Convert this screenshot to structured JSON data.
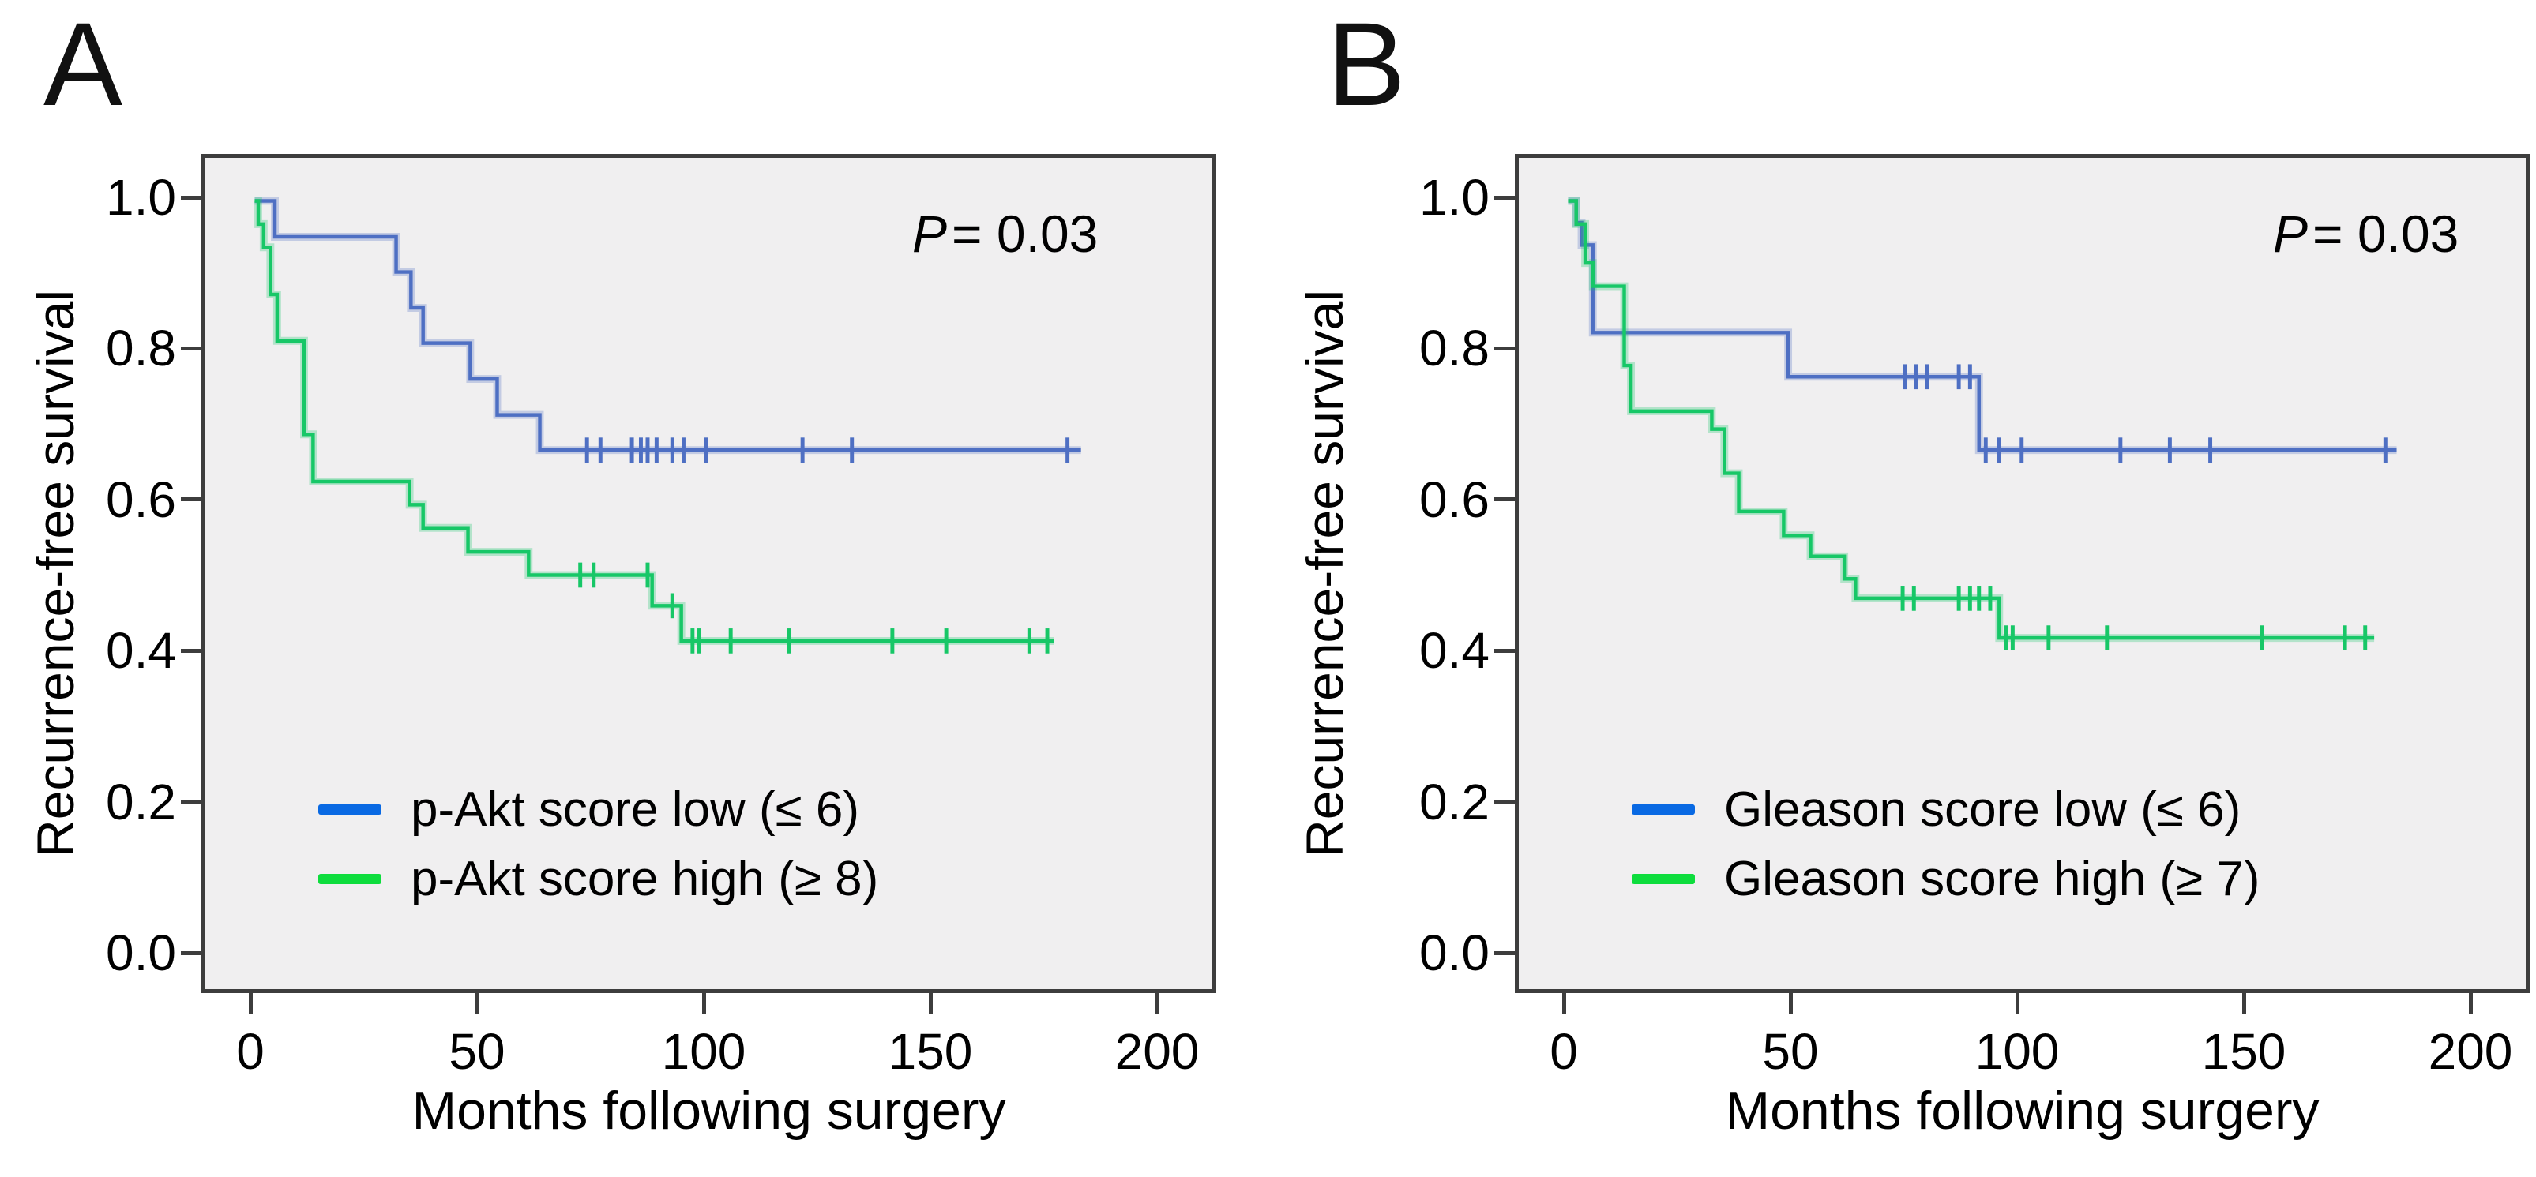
{
  "figure": {
    "background": "#ffffff",
    "description_visible_text_only": true
  },
  "colors": {
    "curve": {
      "blue": "#4e6fc3",
      "green": "#17c767"
    },
    "legend": {
      "blue": "#0969e3",
      "green": "#0edd3d"
    },
    "frame_border": "#3d3d3d",
    "plot_background": "#f0eff0",
    "tick": "#3d3d3d",
    "text": "#000000"
  },
  "chart_data": [
    {
      "panel_letter": "A",
      "type": "line",
      "chart_kind": "kaplan-meier-step-survival",
      "p_value_var": "P",
      "p_value_rest": "= 0.03",
      "xlabel": "Months following surgery",
      "ylabel": "Recurrence-free survival",
      "x_ticks": [
        "0",
        "50",
        "100",
        "150",
        "200"
      ],
      "y_ticks": [
        "1.0",
        "0.8",
        "0.6",
        "0.4",
        "0.2",
        "0.0"
      ],
      "xlim": [
        -11,
        214
      ],
      "ylim": [
        -0.053,
        1.057
      ],
      "grid": false,
      "legend_position": "inside-lower-left",
      "series": [
        {
          "name": "p-Akt score low (≤ 6)",
          "color_key": "blue",
          "steps": [
            [
              0,
              1.0
            ],
            [
              4.5,
              0.952
            ],
            [
              31.5,
              0.905
            ],
            [
              34.8,
              0.857
            ],
            [
              37.5,
              0.81
            ],
            [
              48,
              0.762
            ],
            [
              54,
              0.714
            ],
            [
              63.5,
              0.667
            ]
          ],
          "end_time": 184,
          "censor_times": [
            [
              74,
              0.667
            ],
            [
              77,
              0.667
            ],
            [
              84,
              0.667
            ],
            [
              86,
              0.667
            ],
            [
              87.5,
              0.667
            ],
            [
              89.5,
              0.667
            ],
            [
              93,
              0.667
            ],
            [
              95.5,
              0.667
            ],
            [
              100.5,
              0.667
            ],
            [
              122,
              0.667
            ],
            [
              133,
              0.667
            ],
            [
              181,
              0.667
            ]
          ]
        },
        {
          "name": "p-Akt score high (≥ 8)",
          "color_key": "green",
          "steps": [
            [
              0,
              1.0
            ],
            [
              0.8,
              0.969
            ],
            [
              2,
              0.938
            ],
            [
              3.5,
              0.875
            ],
            [
              5,
              0.813
            ],
            [
              11,
              0.688
            ],
            [
              13,
              0.625
            ],
            [
              34.5,
              0.594
            ],
            [
              37.5,
              0.563
            ],
            [
              47.5,
              0.531
            ],
            [
              61,
              0.5
            ],
            [
              88.5,
              0.459
            ],
            [
              95,
              0.412
            ]
          ],
          "end_time": 178,
          "censor_times": [
            [
              72.5,
              0.5
            ],
            [
              75.5,
              0.5
            ],
            [
              87.5,
              0.5
            ],
            [
              93,
              0.459
            ],
            [
              97.5,
              0.412
            ],
            [
              99,
              0.412
            ],
            [
              106,
              0.412
            ],
            [
              119,
              0.412
            ],
            [
              142,
              0.412
            ],
            [
              154,
              0.412
            ],
            [
              172.5,
              0.412
            ],
            [
              176.5,
              0.412
            ]
          ]
        }
      ]
    },
    {
      "panel_letter": "B",
      "type": "line",
      "chart_kind": "kaplan-meier-step-survival",
      "p_value_var": "P",
      "p_value_rest": "= 0.03",
      "xlabel": "Months following surgery",
      "ylabel": "Recurrence-free survival",
      "x_ticks": [
        "0",
        "50",
        "100",
        "150",
        "200"
      ],
      "y_ticks": [
        "1.0",
        "0.8",
        "0.6",
        "0.4",
        "0.2",
        "0.0"
      ],
      "xlim": [
        -11,
        214
      ],
      "ylim": [
        -0.053,
        1.057
      ],
      "grid": false,
      "legend_position": "inside-lower-left",
      "series": [
        {
          "name": "Gleason score low (≤ 6)",
          "color_key": "blue",
          "steps": [
            [
              0,
              1.0
            ],
            [
              1.8,
              0.971
            ],
            [
              3,
              0.941
            ],
            [
              5.5,
              0.824
            ],
            [
              49,
              0.765
            ],
            [
              91.5,
              0.667
            ]
          ],
          "end_time": 184.5,
          "censor_times": [
            [
              75,
              0.765
            ],
            [
              77.5,
              0.765
            ],
            [
              80,
              0.765
            ],
            [
              87,
              0.765
            ],
            [
              89.5,
              0.765
            ],
            [
              93,
              0.667
            ],
            [
              96,
              0.667
            ],
            [
              101,
              0.667
            ],
            [
              123,
              0.667
            ],
            [
              134,
              0.667
            ],
            [
              143,
              0.667
            ],
            [
              182,
              0.667
            ]
          ]
        },
        {
          "name": "Gleason score high (≥ 7)",
          "color_key": "green",
          "steps": [
            [
              0,
              1.0
            ],
            [
              1.8,
              0.969
            ],
            [
              3.8,
              0.917
            ],
            [
              5.5,
              0.886
            ],
            [
              12.5,
              0.78
            ],
            [
              14,
              0.719
            ],
            [
              32,
              0.695
            ],
            [
              34.8,
              0.636
            ],
            [
              38,
              0.585
            ],
            [
              48,
              0.553
            ],
            [
              54,
              0.525
            ],
            [
              61.5,
              0.495
            ],
            [
              64,
              0.469
            ],
            [
              96,
              0.416
            ]
          ],
          "end_time": 179.5,
          "censor_times": [
            [
              74.5,
              0.469
            ],
            [
              77,
              0.469
            ],
            [
              87,
              0.469
            ],
            [
              89.5,
              0.469
            ],
            [
              91.5,
              0.469
            ],
            [
              94,
              0.469
            ],
            [
              97.5,
              0.416
            ],
            [
              99,
              0.416
            ],
            [
              107,
              0.416
            ],
            [
              120,
              0.416
            ],
            [
              154.5,
              0.416
            ],
            [
              173,
              0.416
            ],
            [
              177.5,
              0.416
            ]
          ]
        }
      ]
    }
  ]
}
